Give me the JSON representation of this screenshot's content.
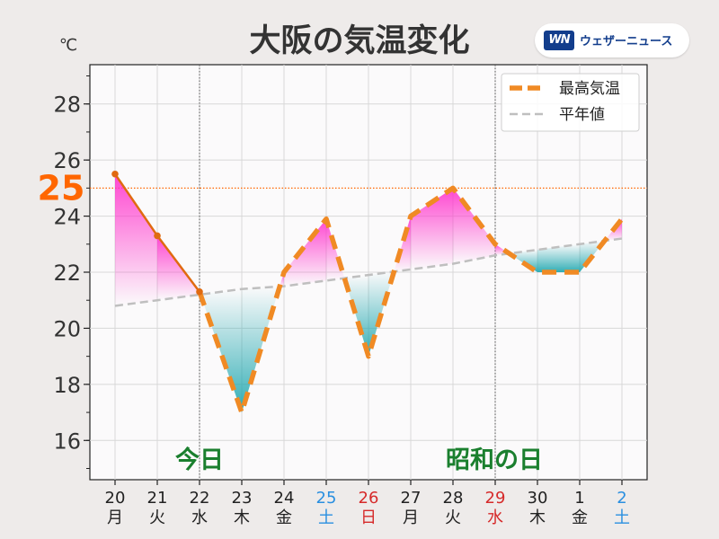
{
  "header": {
    "brand_mark": "WN",
    "brand_name": "ウェザーニュース"
  },
  "colors": {
    "max_temp": "#f08a24",
    "normal": "#bfbfbf",
    "warm_fill": "#ff33cc",
    "cool_fill": "#1aa5ad",
    "threshold": "#ff6600",
    "label_green": "#1a7f2e",
    "sat": "#2a8fe0",
    "sun_holiday": "#d62a2a"
  },
  "chart_data": {
    "type": "line",
    "title": "大阪の気温変化",
    "ylabel": "℃",
    "ylim": [
      14.6,
      29.4
    ],
    "yticks": [
      16,
      18,
      20,
      22,
      24,
      26,
      28
    ],
    "threshold": {
      "value": 25,
      "label": "25"
    },
    "categories": [
      {
        "date": "20",
        "dow": "月",
        "kind": "weekday"
      },
      {
        "date": "21",
        "dow": "火",
        "kind": "weekday"
      },
      {
        "date": "22",
        "dow": "水",
        "kind": "weekday"
      },
      {
        "date": "23",
        "dow": "木",
        "kind": "weekday"
      },
      {
        "date": "24",
        "dow": "金",
        "kind": "weekday"
      },
      {
        "date": "25",
        "dow": "土",
        "kind": "saturday"
      },
      {
        "date": "26",
        "dow": "日",
        "kind": "holiday"
      },
      {
        "date": "27",
        "dow": "月",
        "kind": "weekday"
      },
      {
        "date": "28",
        "dow": "火",
        "kind": "weekday"
      },
      {
        "date": "29",
        "dow": "水",
        "kind": "holiday"
      },
      {
        "date": "30",
        "dow": "木",
        "kind": "weekday"
      },
      {
        "date": "1",
        "dow": "金",
        "kind": "weekday"
      },
      {
        "date": "2",
        "dow": "土",
        "kind": "saturday"
      }
    ],
    "series": [
      {
        "name": "最高気温",
        "values": [
          25.5,
          23.3,
          21.3,
          17.0,
          22.0,
          23.9,
          19.0,
          24.0,
          25.0,
          23.0,
          22.0,
          22.0,
          23.9
        ],
        "observed_through_index": 2
      },
      {
        "name": "平年値",
        "values": [
          20.8,
          21.0,
          21.2,
          21.4,
          21.5,
          21.7,
          21.9,
          22.1,
          22.3,
          22.6,
          22.8,
          23.0,
          23.2
        ]
      }
    ],
    "markers": [
      {
        "index": 2,
        "label": "今日"
      },
      {
        "index": 9,
        "label": "昭和の日"
      }
    ],
    "legend": "top-right",
    "grid": true
  }
}
